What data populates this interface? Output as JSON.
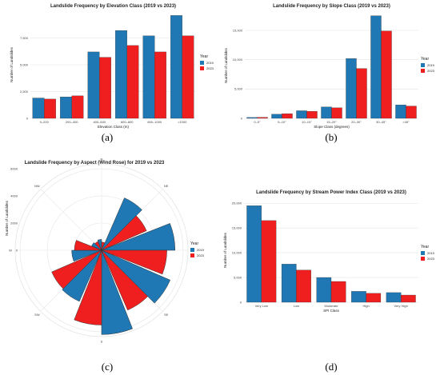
{
  "colors": {
    "y2019": "#1f77b4",
    "y2023": "#ef1f1f",
    "edge": "#333333"
  },
  "legend_title": "Year",
  "chart_data": [
    {
      "panel": "(a)",
      "type": "bar",
      "title": "Landslide Frequency by Elevation Class (2019 vs 2023)",
      "xlabel": "Elevation Class (m)",
      "ylabel": "Number of Landslides",
      "categories": [
        "0–200",
        "200–400",
        "400–600",
        "600–800",
        "800–1000",
        ">1000"
      ],
      "series": [
        {
          "name": "2019",
          "values": [
            1900,
            2000,
            6200,
            8200,
            7700,
            9600
          ]
        },
        {
          "name": "2023",
          "values": [
            1800,
            2100,
            5700,
            6800,
            6200,
            7700
          ]
        }
      ],
      "ylim": [
        0,
        10000
      ],
      "yticks": [
        0,
        2500,
        5000,
        7500
      ],
      "legend": "right"
    },
    {
      "panel": "(b)",
      "type": "bar",
      "title": "Landslide Frequency by Slope Class (2019 vs 2023)",
      "xlabel": "Slope Class (degrees)",
      "ylabel": "Number of Landslides",
      "categories": [
        "0–5°",
        "5–10°",
        "10–15°",
        "15–20°",
        "20–30°",
        "30–45°",
        ">45°"
      ],
      "series": [
        {
          "name": "2019",
          "values": [
            150,
            700,
            1300,
            1950,
            10200,
            17500,
            2300
          ]
        },
        {
          "name": "2023",
          "values": [
            180,
            800,
            1200,
            1800,
            8500,
            14900,
            2100
          ]
        }
      ],
      "ylim": [
        0,
        18000
      ],
      "yticks": [
        0,
        5000,
        10000,
        15000
      ],
      "legend": "right"
    },
    {
      "panel": "(c)",
      "type": "bar",
      "title": "Landslide Frequency by Aspect (Wind Rose) for 2019 vs 2023",
      "ylabel": "Number of Landslides",
      "polar": true,
      "categories": [
        "N",
        "NE",
        "E",
        "SE",
        "S",
        "SW",
        "W",
        "NW"
      ],
      "series": [
        {
          "name": "2019",
          "values": [
            800,
            4200,
            5400,
            5500,
            6200,
            4100,
            2200,
            800
          ]
        },
        {
          "name": "2023",
          "values": [
            600,
            3600,
            4800,
            4800,
            5500,
            4000,
            2000,
            700
          ]
        }
      ],
      "rlim": [
        0,
        6000
      ],
      "rticks": [
        0,
        2000,
        4000,
        6000
      ],
      "legend": "right"
    },
    {
      "panel": "(d)",
      "type": "bar",
      "title": "Landslide Frequency by Stream Power Index Class (2019 vs 2023)",
      "xlabel": "SPI Class",
      "ylabel": "Number of Landslides",
      "categories": [
        "Very Low",
        "Low",
        "Moderate",
        "High",
        "Very High"
      ],
      "series": [
        {
          "name": "2019",
          "values": [
            19500,
            7700,
            5000,
            2200,
            1950
          ]
        },
        {
          "name": "2023",
          "values": [
            16500,
            6500,
            4200,
            1800,
            1450
          ]
        }
      ],
      "ylim": [
        0,
        21000
      ],
      "yticks": [
        0,
        5000,
        10000,
        15000,
        20000
      ],
      "legend": "right"
    }
  ]
}
